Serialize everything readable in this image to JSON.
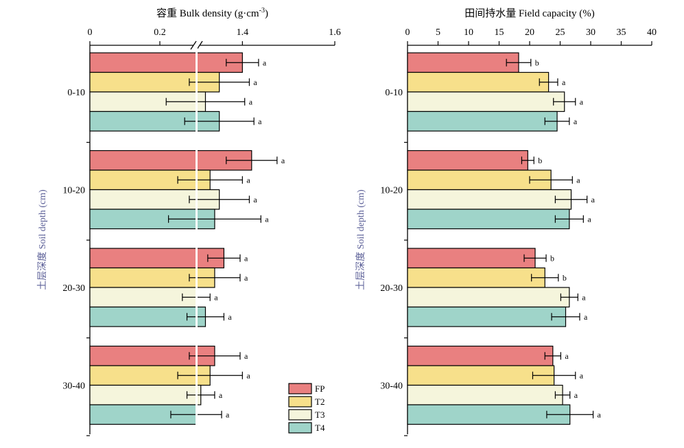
{
  "chart_data": [
    {
      "type": "bar",
      "orientation": "horizontal",
      "title": "容重 Bulk density (g·cm",
      "title_sup": "-3",
      "title_end": ")",
      "ylabel": "土层深度 Soil depth (cm)",
      "x_axis_position": "top",
      "axis_break": true,
      "x_ticks": [
        "0",
        "0.2",
        "1.4",
        "1.6"
      ],
      "xlim_low": [
        0,
        0.3
      ],
      "xlim_high": [
        1.3,
        1.6
      ],
      "categories": [
        "0-10",
        "10-20",
        "20-30",
        "30-40"
      ],
      "series": [
        {
          "name": "FP",
          "values": [
            1.4,
            1.42,
            1.36,
            1.34
          ],
          "errors": [
            0.035,
            0.055,
            0.035,
            0.055
          ],
          "labels": [
            "a",
            "a",
            "a",
            "a"
          ]
        },
        {
          "name": "T2",
          "values": [
            1.35,
            1.33,
            1.34,
            1.33
          ],
          "errors": [
            0.065,
            0.07,
            0.055,
            0.07
          ],
          "labels": [
            "a",
            "a",
            "a",
            "a"
          ]
        },
        {
          "name": "T3",
          "values": [
            1.32,
            1.35,
            1.3,
            1.31
          ],
          "errors": [
            0.085,
            0.065,
            0.03,
            0.03
          ],
          "labels": [
            "a",
            "a",
            "a",
            "a"
          ]
        },
        {
          "name": "T4",
          "values": [
            1.35,
            1.34,
            1.32,
            1.3
          ],
          "errors": [
            0.075,
            0.1,
            0.04,
            0.055
          ],
          "labels": [
            "a",
            "a",
            "a",
            "a"
          ]
        }
      ]
    },
    {
      "type": "bar",
      "orientation": "horizontal",
      "title": "田间持水量 Field capacity (%)",
      "ylabel": "土层深度 Soil depth (cm)",
      "x_axis_position": "top",
      "x_ticks": [
        "0",
        "5",
        "10",
        "15",
        "20",
        "25",
        "30",
        "35",
        "40"
      ],
      "xlim": [
        0,
        40
      ],
      "categories": [
        "0-10",
        "10-20",
        "20-30",
        "30-40"
      ],
      "series": [
        {
          "name": "FP",
          "values": [
            18.2,
            19.7,
            20.9,
            23.8
          ],
          "errors": [
            2.0,
            1.0,
            1.8,
            1.3
          ],
          "labels": [
            "b",
            "b",
            "b",
            "a"
          ]
        },
        {
          "name": "T2",
          "values": [
            23.1,
            23.5,
            22.5,
            24.0
          ],
          "errors": [
            1.5,
            3.5,
            2.2,
            3.5
          ],
          "labels": [
            "a",
            "a",
            "b",
            "a"
          ]
        },
        {
          "name": "T3",
          "values": [
            25.7,
            26.8,
            26.5,
            25.4
          ],
          "errors": [
            1.8,
            2.6,
            1.4,
            1.2
          ],
          "labels": [
            "a",
            "a",
            "a",
            "a"
          ]
        },
        {
          "name": "T4",
          "values": [
            24.5,
            26.5,
            25.9,
            26.6
          ],
          "errors": [
            2.0,
            2.3,
            2.3,
            3.8
          ],
          "labels": [
            "a",
            "a",
            "a",
            "a"
          ]
        }
      ]
    }
  ],
  "legend": {
    "placement": "bottom-right of left panel",
    "items": [
      {
        "label": "FP",
        "color": "#e98080"
      },
      {
        "label": "T2",
        "color": "#f7e08b"
      },
      {
        "label": "T3",
        "color": "#f5f5dc"
      },
      {
        "label": "T4",
        "color": "#9fd4c9"
      }
    ]
  }
}
